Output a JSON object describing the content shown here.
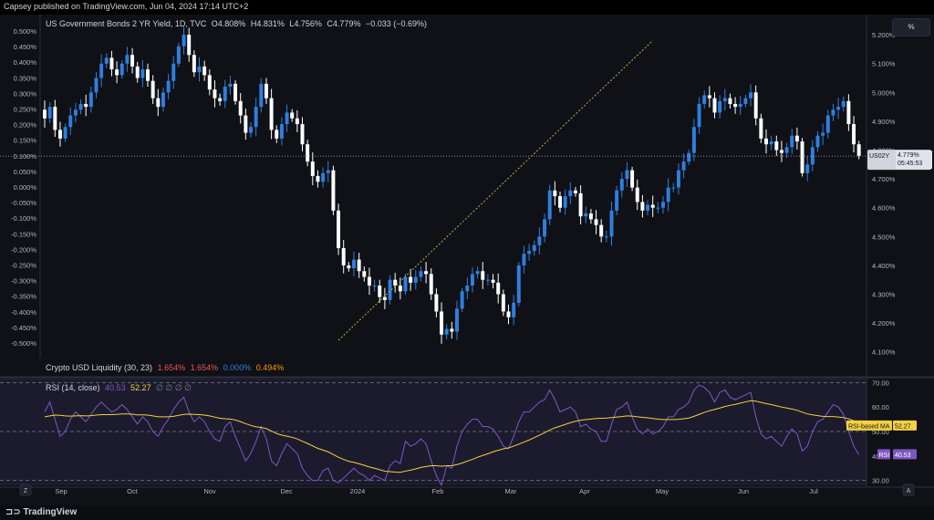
{
  "header": {
    "published": "Capsey published on TradingView.com, Jun 04, 2024 17:14 UTC+2"
  },
  "legend": {
    "title": "US Government Bonds 2 YR Yield, 1D, TVC",
    "open": "O4.808%",
    "high": "H4.831%",
    "low": "L4.756%",
    "close": "C4.779%",
    "change": "−0.033 (−0.69%)"
  },
  "indicator": {
    "name": "Crypto USD Liquidity (30, 23)",
    "v1": "1.654%",
    "v2": "1.654%",
    "v3": "0.000%",
    "v4": "0.494%"
  },
  "rsi_legend": {
    "name": "RSI (14, close)",
    "v1": "40.53",
    "v2": "52.27",
    "rest": "∅ ∅ ∅ ∅"
  },
  "scale_button": "%",
  "price_label": {
    "ticker": "US02Y",
    "value": "4.779%",
    "countdown": "05:45:53"
  },
  "rsi_labels": {
    "ma_name": "RSI-based MA",
    "ma_value": "52.27",
    "rsi_name": "RSI",
    "rsi_value": "40.53"
  },
  "footer": {
    "brand": "TradingView",
    "left_btn": "Z",
    "right_btn": "A"
  },
  "colors": {
    "bg": "#0f1116",
    "up": "#2e7fe0",
    "down": "#ffffff",
    "rsi": "#7e57c2",
    "rsi_ma": "#f4d03f",
    "trend": "#b8b04a",
    "indicator": "#ef5350"
  },
  "chart_data": [
    {
      "type": "candlestick",
      "title": "US Government Bonds 2 YR Yield, 1D, TVC",
      "x_ticks": [
        "Sep",
        "Oct",
        "Nov",
        "Dec",
        "2024",
        "Feb",
        "Mar",
        "Apr",
        "May",
        "Jun",
        "Jul"
      ],
      "left_axis": {
        "label": "Crypto USD Liquidity",
        "ticks": [
          "0.500%",
          "0.450%",
          "0.400%",
          "0.350%",
          "0.300%",
          "0.250%",
          "0.200%",
          "0.150%",
          "0.100%",
          "0.050%",
          "0.000%",
          "-0.050%",
          "-0.100%",
          "-0.150%",
          "-0.200%",
          "-0.250%",
          "-0.300%",
          "-0.350%",
          "-0.400%",
          "-0.450%",
          "-0.500%"
        ]
      },
      "right_axis": {
        "ticks": [
          "5.200%",
          "5.100%",
          "5.000%",
          "4.900%",
          "4.800%",
          "4.700%",
          "4.600%",
          "4.500%",
          "4.400%",
          "4.300%",
          "4.200%",
          "4.100%"
        ],
        "ylim": [
          4.08,
          5.27
        ]
      },
      "closes": [
        4.91,
        4.95,
        4.87,
        4.84,
        4.88,
        4.92,
        4.94,
        4.96,
        4.95,
        5.0,
        5.05,
        5.1,
        5.12,
        5.08,
        5.06,
        5.1,
        5.13,
        5.09,
        5.05,
        5.08,
        5.04,
        4.98,
        4.95,
        5.0,
        5.04,
        5.1,
        5.16,
        5.2,
        5.13,
        5.07,
        5.09,
        5.06,
        5.01,
        4.98,
        4.97,
        5.02,
        5.03,
        4.97,
        4.92,
        4.86,
        4.88,
        4.95,
        5.03,
        4.98,
        4.87,
        4.84,
        4.89,
        4.93,
        4.91,
        4.89,
        4.82,
        4.76,
        4.71,
        4.69,
        4.72,
        4.73,
        4.59,
        4.46,
        4.4,
        4.39,
        4.42,
        4.38,
        4.36,
        4.33,
        4.33,
        4.29,
        4.28,
        4.35,
        4.33,
        4.31,
        4.36,
        4.34,
        4.36,
        4.38,
        4.37,
        4.3,
        4.24,
        4.16,
        4.18,
        4.17,
        4.25,
        4.31,
        4.33,
        4.37,
        4.38,
        4.35,
        4.35,
        4.34,
        4.3,
        4.24,
        4.22,
        4.27,
        4.4,
        4.44,
        4.45,
        4.47,
        4.5,
        4.56,
        4.66,
        4.64,
        4.6,
        4.64,
        4.66,
        4.65,
        4.57,
        4.58,
        4.56,
        4.54,
        4.5,
        4.5,
        4.59,
        4.66,
        4.7,
        4.73,
        4.67,
        4.62,
        4.59,
        4.61,
        4.6,
        4.6,
        4.62,
        4.67,
        4.67,
        4.73,
        4.76,
        4.79,
        4.88,
        4.96,
        4.99,
        4.98,
        4.93,
        4.97,
        4.98,
        4.96,
        4.95,
        4.96,
        4.98,
        5.0,
        4.91,
        4.84,
        4.82,
        4.83,
        4.8,
        4.79,
        4.81,
        4.85,
        4.83,
        4.72,
        4.75,
        4.81,
        4.85,
        4.86,
        4.92,
        4.94,
        4.95,
        4.97,
        4.89,
        4.82,
        4.78
      ],
      "current_price": 4.779,
      "trendline": [
        [
          4.14,
          57
        ],
        [
          5.18,
          118
        ]
      ]
    },
    {
      "type": "line",
      "title": "RSI (14, close)",
      "series": [
        {
          "name": "RSI",
          "current": 40.53
        },
        {
          "name": "RSI-based MA",
          "current": 52.27
        }
      ],
      "y_ticks": [
        "70.00",
        "60.00",
        "50.00",
        "40.00",
        "30.00"
      ],
      "ylim": [
        28,
        72
      ],
      "bands": [
        70,
        50,
        30
      ],
      "rsi": [
        58.0,
        62.0,
        55.0,
        48.0,
        50.0,
        55.0,
        58.0,
        56.0,
        54.0,
        57.0,
        60.0,
        62.0,
        60.0,
        58.0,
        59.0,
        61.0,
        59.0,
        56.0,
        53.0,
        56.0,
        54.0,
        50.0,
        48.0,
        52.0,
        55.0,
        59.0,
        62.0,
        64.0,
        58.0,
        54.0,
        56.0,
        54.0,
        50.0,
        47.0,
        46.0,
        52.0,
        54.0,
        48.0,
        43.0,
        38.0,
        41.0,
        46.0,
        52.0,
        47.0,
        38.0,
        36.0,
        41.0,
        45.0,
        43.0,
        41.0,
        35.0,
        32.0,
        30.0,
        30.0,
        34.0,
        35.0,
        30.0,
        29.0,
        31.0,
        33.0,
        35.0,
        33.0,
        32.0,
        30.0,
        32.0,
        31.0,
        30.0,
        36.0,
        38.0,
        37.0,
        46.0,
        44.0,
        45.0,
        47.0,
        45.0,
        38.0,
        32.0,
        28.0,
        36.0,
        35.0,
        44.0,
        50.0,
        53.0,
        55.0,
        55.0,
        52.0,
        52.0,
        51.0,
        48.0,
        44.0,
        43.0,
        48.0,
        54.0,
        58.0,
        58.0,
        60.0,
        62.0,
        63.0,
        67.0,
        63.0,
        58.0,
        59.0,
        60.0,
        58.0,
        52.0,
        53.0,
        51.0,
        50.0,
        46.0,
        46.0,
        53.0,
        59.0,
        60.0,
        62.0,
        56.0,
        51.0,
        49.0,
        51.0,
        49.0,
        50.0,
        52.0,
        56.0,
        56.0,
        59.0,
        60.0,
        62.0,
        67.0,
        69.0,
        68.0,
        66.0,
        62.0,
        66.0,
        67.0,
        64.0,
        63.0,
        64.0,
        65.0,
        66.0,
        56.0,
        49.0,
        47.0,
        48.0,
        46.0,
        44.0,
        48.0,
        51.0,
        49.0,
        42.0,
        44.0,
        50.0,
        54.0,
        55.0,
        58.0,
        61.0,
        60.0,
        57.0,
        50.0,
        44.0,
        40.53
      ],
      "rsi_ma": [
        56.0,
        56.4,
        56.7,
        56.6,
        56.4,
        56.3,
        56.4,
        56.5,
        56.4,
        56.5,
        56.7,
        56.9,
        56.9,
        56.9,
        57.0,
        57.2,
        57.2,
        57.1,
        56.8,
        56.8,
        56.7,
        56.4,
        56.0,
        56.0,
        56.0,
        56.2,
        56.6,
        57.0,
        57.1,
        57.0,
        56.9,
        56.7,
        56.4,
        55.9,
        55.4,
        55.2,
        55.1,
        54.7,
        54.0,
        53.2,
        52.5,
        51.9,
        51.7,
        51.2,
        50.2,
        49.2,
        48.5,
        48.1,
        47.6,
        47.0,
        46.0,
        45.1,
        44.1,
        43.1,
        42.4,
        41.7,
        40.6,
        39.5,
        38.6,
        37.8,
        37.4,
        36.8,
        36.2,
        35.5,
        35.0,
        34.4,
        33.8,
        33.6,
        33.4,
        33.3,
        33.8,
        34.2,
        34.7,
        35.3,
        35.7,
        36.0,
        36.0,
        35.8,
        36.0,
        36.0,
        36.5,
        37.1,
        37.9,
        38.6,
        39.5,
        40.2,
        40.9,
        41.7,
        42.3,
        42.9,
        43.3,
        44.0,
        44.8,
        45.7,
        46.5,
        47.5,
        48.5,
        49.5,
        50.6,
        51.5,
        52.2,
        52.9,
        53.6,
        54.2,
        54.6,
        54.9,
        55.1,
        55.3,
        55.4,
        55.5,
        55.7,
        55.9,
        56.1,
        56.4,
        56.3,
        56.0,
        55.8,
        55.6,
        55.3,
        55.1,
        54.9,
        54.9,
        54.9,
        55.0,
        55.2,
        55.5,
        56.2,
        57.0,
        57.8,
        58.5,
        59.0,
        59.6,
        60.2,
        60.7,
        61.1,
        61.6,
        62.1,
        62.6,
        62.4,
        61.9,
        61.4,
        61.0,
        60.5,
        60.0,
        59.6,
        59.2,
        58.7,
        57.9,
        57.2,
        56.8,
        56.5,
        56.2,
        56.1,
        56.1,
        55.9,
        55.7,
        55.2,
        54.4,
        53.4,
        52.27
      ]
    }
  ]
}
